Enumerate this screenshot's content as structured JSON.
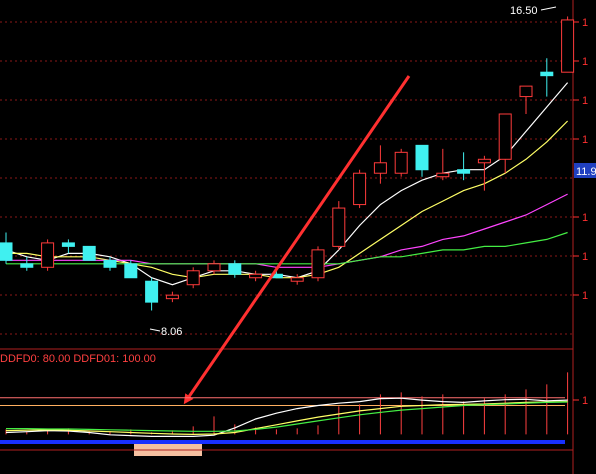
{
  "chart_data": [
    {
      "type": "candlestick",
      "title": "",
      "price_annotations": {
        "high_label": "16.50",
        "low_label": "8.06",
        "right_axis_label": "11.9"
      },
      "right_axis_ticks": [
        "1",
        "1",
        "1",
        "1",
        "1",
        "1",
        "1"
      ],
      "ylim": [
        7.5,
        16.8
      ],
      "candles": [
        {
          "o": 10.0,
          "h": 10.3,
          "l": 9.4,
          "c": 9.5
        },
        {
          "o": 9.4,
          "h": 9.6,
          "l": 9.2,
          "c": 9.3
        },
        {
          "o": 9.3,
          "h": 10.1,
          "l": 9.2,
          "c": 10.0
        },
        {
          "o": 10.0,
          "h": 10.1,
          "l": 9.7,
          "c": 9.9
        },
        {
          "o": 9.9,
          "h": 9.9,
          "l": 9.5,
          "c": 9.5
        },
        {
          "o": 9.5,
          "h": 9.6,
          "l": 9.2,
          "c": 9.3
        },
        {
          "o": 9.4,
          "h": 9.5,
          "l": 9.0,
          "c": 9.0
        },
        {
          "o": 8.9,
          "h": 9.0,
          "l": 8.06,
          "c": 8.3
        },
        {
          "o": 8.4,
          "h": 8.6,
          "l": 8.3,
          "c": 8.5
        },
        {
          "o": 8.8,
          "h": 9.3,
          "l": 8.7,
          "c": 9.2
        },
        {
          "o": 9.2,
          "h": 9.5,
          "l": 9.1,
          "c": 9.4
        },
        {
          "o": 9.4,
          "h": 9.5,
          "l": 9.0,
          "c": 9.1
        },
        {
          "o": 9.0,
          "h": 9.2,
          "l": 8.9,
          "c": 9.1
        },
        {
          "o": 9.1,
          "h": 9.2,
          "l": 9.0,
          "c": 9.0
        },
        {
          "o": 8.9,
          "h": 9.1,
          "l": 8.8,
          "c": 9.0
        },
        {
          "o": 9.0,
          "h": 9.9,
          "l": 8.9,
          "c": 9.8
        },
        {
          "o": 9.9,
          "h": 11.2,
          "l": 9.8,
          "c": 11.0
        },
        {
          "o": 11.1,
          "h": 12.1,
          "l": 11.0,
          "c": 12.0
        },
        {
          "o": 12.0,
          "h": 12.8,
          "l": 11.7,
          "c": 12.3
        },
        {
          "o": 12.0,
          "h": 12.7,
          "l": 11.9,
          "c": 12.6
        },
        {
          "o": 12.8,
          "h": 12.8,
          "l": 11.9,
          "c": 12.1
        },
        {
          "o": 11.9,
          "h": 12.7,
          "l": 11.8,
          "c": 12.0
        },
        {
          "o": 12.1,
          "h": 12.6,
          "l": 11.8,
          "c": 12.0
        },
        {
          "o": 12.3,
          "h": 12.5,
          "l": 11.5,
          "c": 12.4
        },
        {
          "o": 12.4,
          "h": 13.7,
          "l": 12.0,
          "c": 13.7
        },
        {
          "o": 14.2,
          "h": 14.5,
          "l": 13.7,
          "c": 14.5
        },
        {
          "o": 14.9,
          "h": 15.3,
          "l": 14.2,
          "c": 14.8
        },
        {
          "o": 14.9,
          "h": 16.5,
          "l": 14.9,
          "c": 16.4
        }
      ],
      "series": [
        {
          "color": "#ffffff",
          "values": [
            9.8,
            9.6,
            9.5,
            9.7,
            9.7,
            9.6,
            9.4,
            9.0,
            8.8,
            9.0,
            9.2,
            9.2,
            9.1,
            9.1,
            9.0,
            9.2,
            9.8,
            10.5,
            11.1,
            11.5,
            11.8,
            12.0,
            12.1,
            12.1,
            12.5,
            13.2,
            13.9,
            14.6
          ]
        },
        {
          "color": "#ffff66",
          "values": [
            9.7,
            9.7,
            9.6,
            9.6,
            9.6,
            9.5,
            9.4,
            9.3,
            9.1,
            9.0,
            9.1,
            9.1,
            9.1,
            9.0,
            9.0,
            9.1,
            9.3,
            9.7,
            10.1,
            10.5,
            10.9,
            11.2,
            11.5,
            11.7,
            12.0,
            12.4,
            12.9,
            13.5
          ]
        },
        {
          "color": "#ff44ff",
          "values": [
            9.5,
            9.5,
            9.5,
            9.5,
            9.5,
            9.5,
            9.5,
            9.4,
            9.4,
            9.4,
            9.4,
            9.4,
            9.4,
            9.3,
            9.3,
            9.3,
            9.4,
            9.5,
            9.6,
            9.8,
            9.9,
            10.1,
            10.2,
            10.4,
            10.6,
            10.8,
            11.1,
            11.4
          ]
        },
        {
          "color": "#44ee44",
          "values": [
            9.4,
            9.4,
            9.4,
            9.4,
            9.4,
            9.4,
            9.4,
            9.4,
            9.4,
            9.4,
            9.4,
            9.4,
            9.4,
            9.4,
            9.4,
            9.4,
            9.4,
            9.5,
            9.6,
            9.6,
            9.7,
            9.8,
            9.8,
            9.9,
            9.9,
            10.0,
            10.1,
            10.3
          ]
        }
      ]
    },
    {
      "type": "line",
      "title": "",
      "indicator_label": "DDFD0: 80.00  DDFD01: 100.00",
      "right_axis_tick": "1",
      "ylim": [
        -25,
        115
      ],
      "levels": [
        100,
        80
      ],
      "volume_bars": [
        5,
        3,
        4,
        6,
        3,
        3,
        5,
        2,
        4,
        8,
        18,
        10,
        7,
        5,
        6,
        9,
        28,
        30,
        40,
        42,
        38,
        40,
        33,
        36,
        40,
        45,
        50,
        62
      ],
      "series": [
        {
          "color": "#ffffff",
          "values": [
            10,
            12,
            15,
            14,
            10,
            4,
            2,
            0,
            0,
            0,
            3,
            22,
            45,
            60,
            72,
            80,
            86,
            90,
            98,
            99,
            94,
            90,
            88,
            92,
            95,
            96,
            92,
            94
          ]
        },
        {
          "color": "#ffff66",
          "values": [
            15,
            16,
            17,
            16,
            14,
            12,
            10,
            8,
            6,
            5,
            6,
            10,
            20,
            30,
            40,
            50,
            58,
            66,
            72,
            78,
            80,
            82,
            83,
            84,
            86,
            88,
            89,
            90
          ]
        },
        {
          "color": "#44ee44",
          "values": [
            20,
            20,
            19,
            19,
            18,
            17,
            16,
            15,
            14,
            13,
            13,
            14,
            18,
            24,
            32,
            40,
            48,
            56,
            62,
            68,
            72,
            76,
            80,
            82,
            84,
            86,
            88,
            89
          ]
        }
      ]
    }
  ]
}
